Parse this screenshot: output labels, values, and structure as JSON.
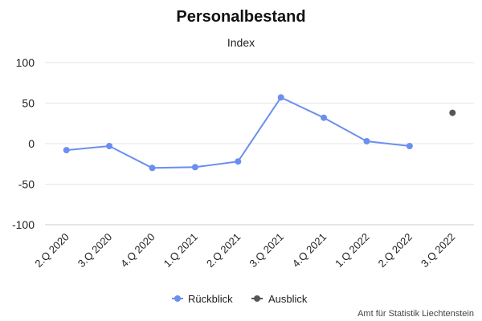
{
  "chart_data": {
    "type": "line",
    "title": "Personalbestand",
    "subtitle": "Index",
    "categories": [
      "2.Q 2020",
      "3.Q 2020",
      "4.Q 2020",
      "1.Q 2021",
      "2.Q 2021",
      "3.Q 2021",
      "4.Q 2021",
      "1.Q 2022",
      "2.Q 2022",
      "3.Q 2022"
    ],
    "series": [
      {
        "name": "Rückblick",
        "color": "#6b8ff0",
        "values": [
          -8,
          -3,
          -30,
          -29,
          -22,
          57,
          32,
          3,
          -3,
          null
        ]
      },
      {
        "name": "Ausblick",
        "color": "#555555",
        "values": [
          null,
          null,
          null,
          null,
          null,
          null,
          null,
          null,
          null,
          38
        ]
      }
    ],
    "ylim": [
      -100,
      100
    ],
    "yticks": [
      100,
      50,
      0,
      -50,
      -100
    ],
    "grid": true,
    "legend_position": "bottom-center"
  },
  "credit": "Amt für Statistik Liechtenstein"
}
